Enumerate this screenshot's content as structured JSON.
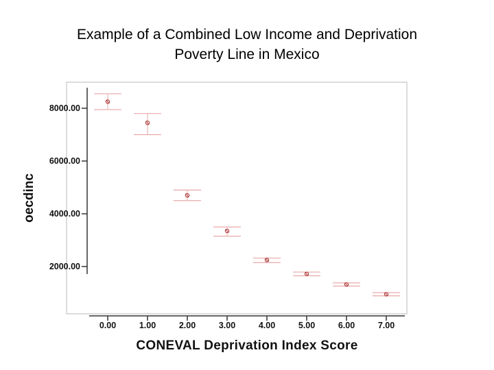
{
  "slide": {
    "title_line1": "Example of a Combined Low Income and Deprivation",
    "title_line2": "Poverty Line in Mexico"
  },
  "colors": {
    "marker": "#b04040",
    "errorbar": "#e8a8a8",
    "frame": "#b8b8b8",
    "axis": "#333333"
  },
  "chart_data": {
    "type": "scatter",
    "subtype": "error-bar",
    "title": "",
    "xlabel": "CONEVAL Deprivation Index Score",
    "ylabel": "oecdinc",
    "x_ticks": [
      "0.00",
      "1.00",
      "2.00",
      "3.00",
      "4.00",
      "5.00",
      "6.00",
      "7.00"
    ],
    "y_ticks": [
      "2000.00",
      "4000.00",
      "6000.00",
      "8000.00"
    ],
    "y_tick_values": [
      2000,
      4000,
      6000,
      8000
    ],
    "xlim": [
      -0.5,
      7.5
    ],
    "ylim": [
      0,
      9200
    ],
    "grid": false,
    "points": [
      {
        "x": 0,
        "mean": 8250,
        "lower": 7950,
        "upper": 8550
      },
      {
        "x": 1,
        "mean": 7450,
        "lower": 7000,
        "upper": 7800
      },
      {
        "x": 2,
        "mean": 4700,
        "lower": 4500,
        "upper": 4900
      },
      {
        "x": 3,
        "mean": 3350,
        "lower": 3150,
        "upper": 3500
      },
      {
        "x": 4,
        "mean": 2250,
        "lower": 2150,
        "upper": 2320
      },
      {
        "x": 5,
        "mean": 1720,
        "lower": 1650,
        "upper": 1790
      },
      {
        "x": 6,
        "mean": 1320,
        "lower": 1260,
        "upper": 1380
      },
      {
        "x": 7,
        "mean": 950,
        "lower": 890,
        "upper": 1010
      }
    ]
  }
}
